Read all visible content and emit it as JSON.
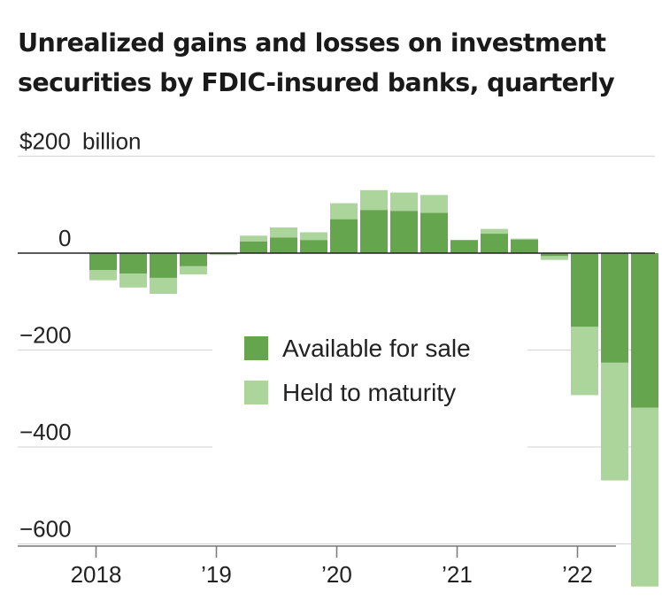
{
  "chart_data": {
    "type": "bar",
    "stacked": true,
    "title": "Unrealized gains and losses on investment securities by FDIC-insured banks, quarterly",
    "unit_label": "billion",
    "ylim": [
      -680,
      200
    ],
    "yticks": [
      {
        "value": 200,
        "label": "$200"
      },
      {
        "value": 0,
        "label": "0"
      },
      {
        "value": -200,
        "label": "−200"
      },
      {
        "value": -400,
        "label": "−400"
      },
      {
        "value": -600,
        "label": "−600"
      }
    ],
    "xticks": [
      {
        "boundary": 0,
        "label": "2018"
      },
      {
        "boundary": 4,
        "label": "’19"
      },
      {
        "boundary": 8,
        "label": "’20"
      },
      {
        "boundary": 12,
        "label": "’21"
      },
      {
        "boundary": 16,
        "label": "’22"
      }
    ],
    "categories": [
      "2018 Q1",
      "2018 Q2",
      "2018 Q3",
      "2018 Q4",
      "2019 Q1",
      "2019 Q2",
      "2019 Q3",
      "2019 Q4",
      "2020 Q1",
      "2020 Q2",
      "2020 Q3",
      "2020 Q4",
      "2021 Q1",
      "2021 Q2",
      "2021 Q3",
      "2021 Q4",
      "2022 Q1",
      "2022 Q2",
      "2022 Q3"
    ],
    "series": [
      {
        "name": "Available for sale",
        "color": "#65a54e",
        "values": [
          -35,
          -42,
          -51,
          -27,
          -2,
          24,
          32,
          27,
          70,
          89,
          87,
          83,
          27,
          40,
          28,
          -6,
          -152,
          -226,
          -319
        ]
      },
      {
        "name": "Held to maturity",
        "color": "#abd59b",
        "values": [
          -21,
          -29,
          -33,
          -17,
          -2,
          12,
          21,
          16,
          33,
          41,
          38,
          37,
          0,
          10,
          2,
          -8,
          -141,
          -243,
          -369
        ]
      }
    ],
    "legend": "center"
  }
}
